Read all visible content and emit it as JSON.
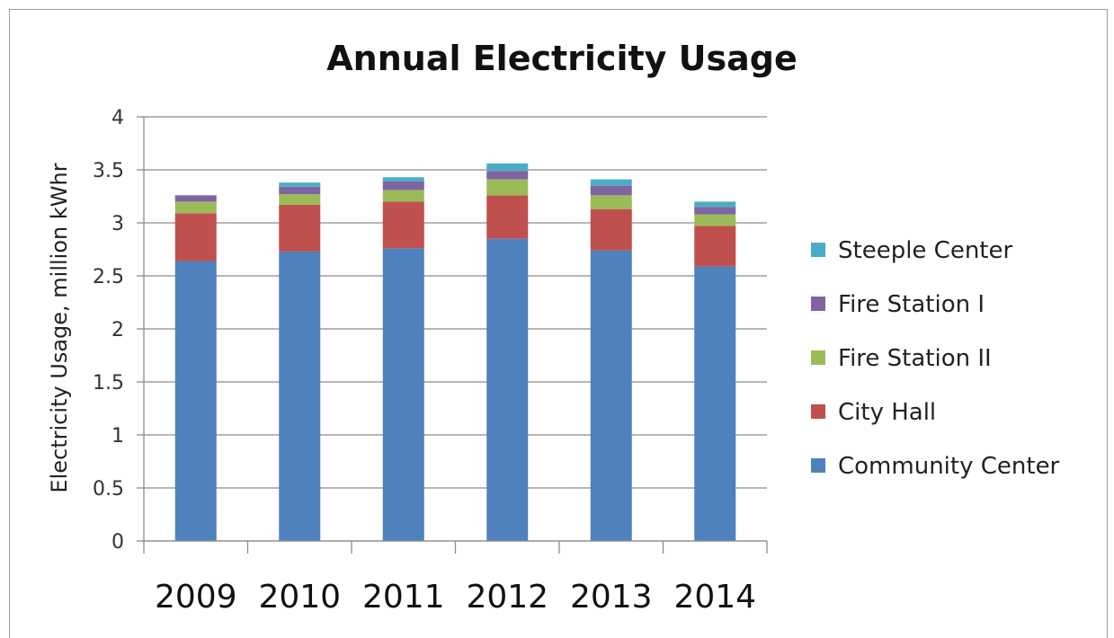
{
  "chart_data": {
    "type": "bar",
    "stacked": true,
    "title": "Annual Electricity Usage",
    "xlabel": "",
    "ylabel": "Electricity Usage, million  kWhr",
    "categories": [
      "2009",
      "2010",
      "2011",
      "2012",
      "2013",
      "2014"
    ],
    "ylim": [
      0,
      4
    ],
    "yticks": [
      "0",
      "0.5",
      "1",
      "1.5",
      "2",
      "2.5",
      "3",
      "3.5",
      "4"
    ],
    "grid": true,
    "legend_position": "right",
    "series": [
      {
        "name": "Community Center",
        "color": "#4f81bd",
        "values": [
          2.64,
          2.73,
          2.76,
          2.85,
          2.74,
          2.59
        ]
      },
      {
        "name": "City Hall",
        "color": "#c0504d",
        "values": [
          0.45,
          0.44,
          0.44,
          0.41,
          0.39,
          0.38
        ]
      },
      {
        "name": "Fire Station II",
        "color": "#9bbb59",
        "values": [
          0.11,
          0.1,
          0.11,
          0.15,
          0.13,
          0.11
        ]
      },
      {
        "name": "Fire Station I",
        "color": "#8064a2",
        "values": [
          0.06,
          0.07,
          0.08,
          0.08,
          0.09,
          0.07
        ]
      },
      {
        "name": "Steeple Center",
        "color": "#4bacc6",
        "values": [
          0.0,
          0.04,
          0.04,
          0.07,
          0.06,
          0.05
        ]
      }
    ]
  }
}
